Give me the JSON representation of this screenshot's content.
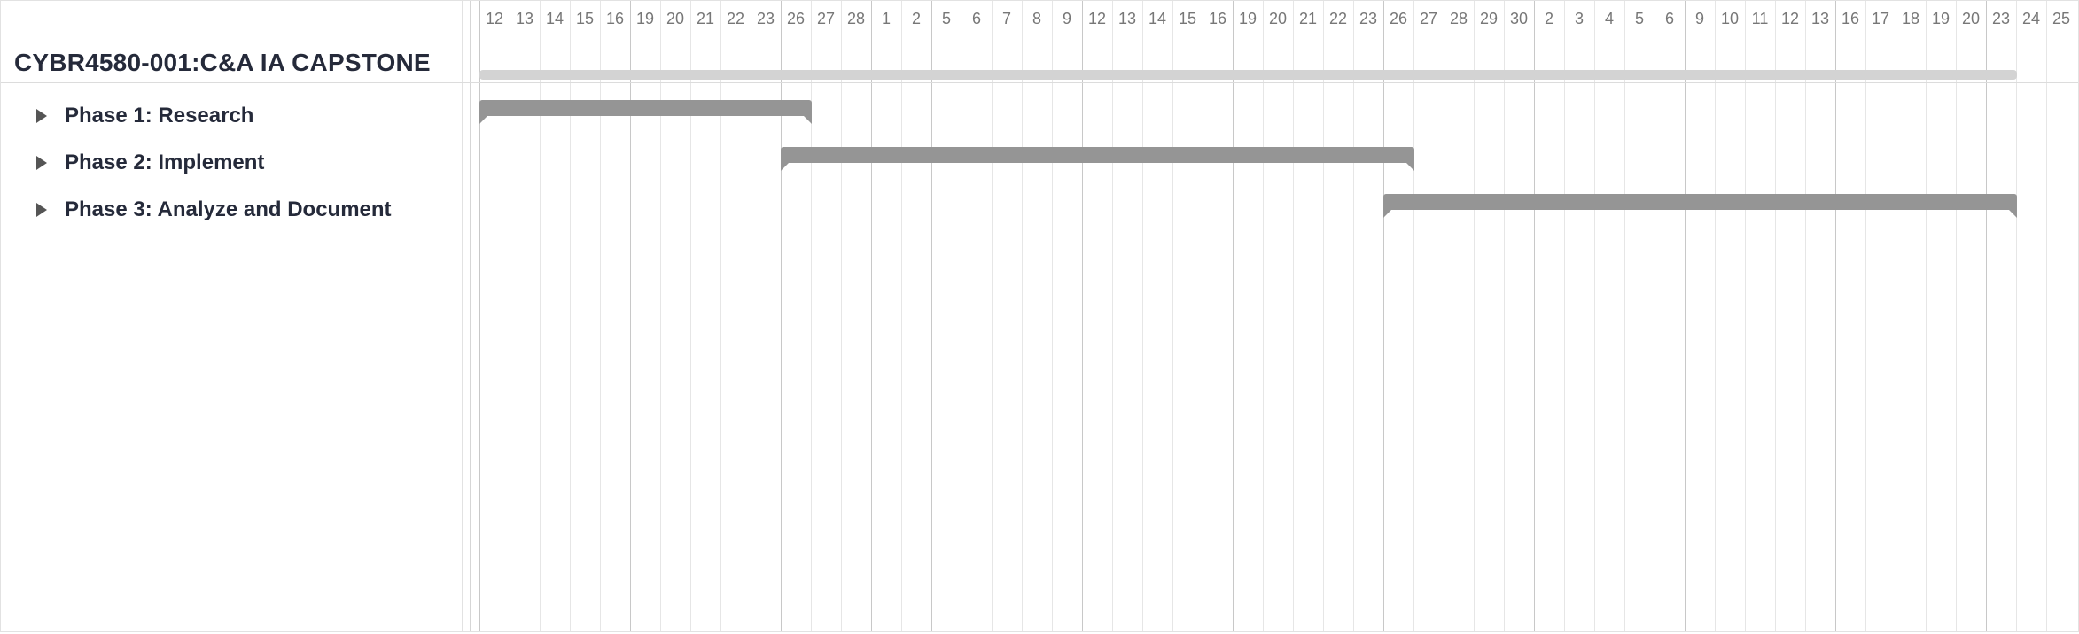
{
  "project": {
    "title": "CYBR4580-001:C&A IA CAPSTONE"
  },
  "phases": [
    {
      "label": "Phase 1: Research",
      "start_index": 0,
      "end_index": 11
    },
    {
      "label": "Phase 2: Implement",
      "start_index": 10,
      "end_index": 31
    },
    {
      "label": "Phase 3: Analyze and Document",
      "start_index": 30,
      "end_index": 51
    }
  ],
  "project_span": {
    "start_index": 0,
    "end_index": 51
  },
  "timeline": {
    "days": [
      "12",
      "13",
      "14",
      "15",
      "16",
      "19",
      "20",
      "21",
      "22",
      "23",
      "26",
      "27",
      "28",
      "1",
      "2",
      "5",
      "6",
      "7",
      "8",
      "9",
      "12",
      "13",
      "14",
      "15",
      "16",
      "19",
      "20",
      "21",
      "22",
      "23",
      "26",
      "27",
      "28",
      "29",
      "30",
      "2",
      "3",
      "4",
      "5",
      "6",
      "9",
      "10",
      "11",
      "12",
      "13",
      "16",
      "17",
      "18",
      "19",
      "20",
      "23",
      "24",
      "25"
    ],
    "week_start_indices": [
      0,
      5,
      10,
      13,
      15,
      20,
      25,
      30,
      35,
      40,
      45,
      50
    ]
  },
  "colors": {
    "phase_bar": "#959595",
    "project_bar": "#d3d3d3",
    "title_text": "#252a3a"
  },
  "icons": {
    "phase_toggle": "caret-right-icon"
  }
}
